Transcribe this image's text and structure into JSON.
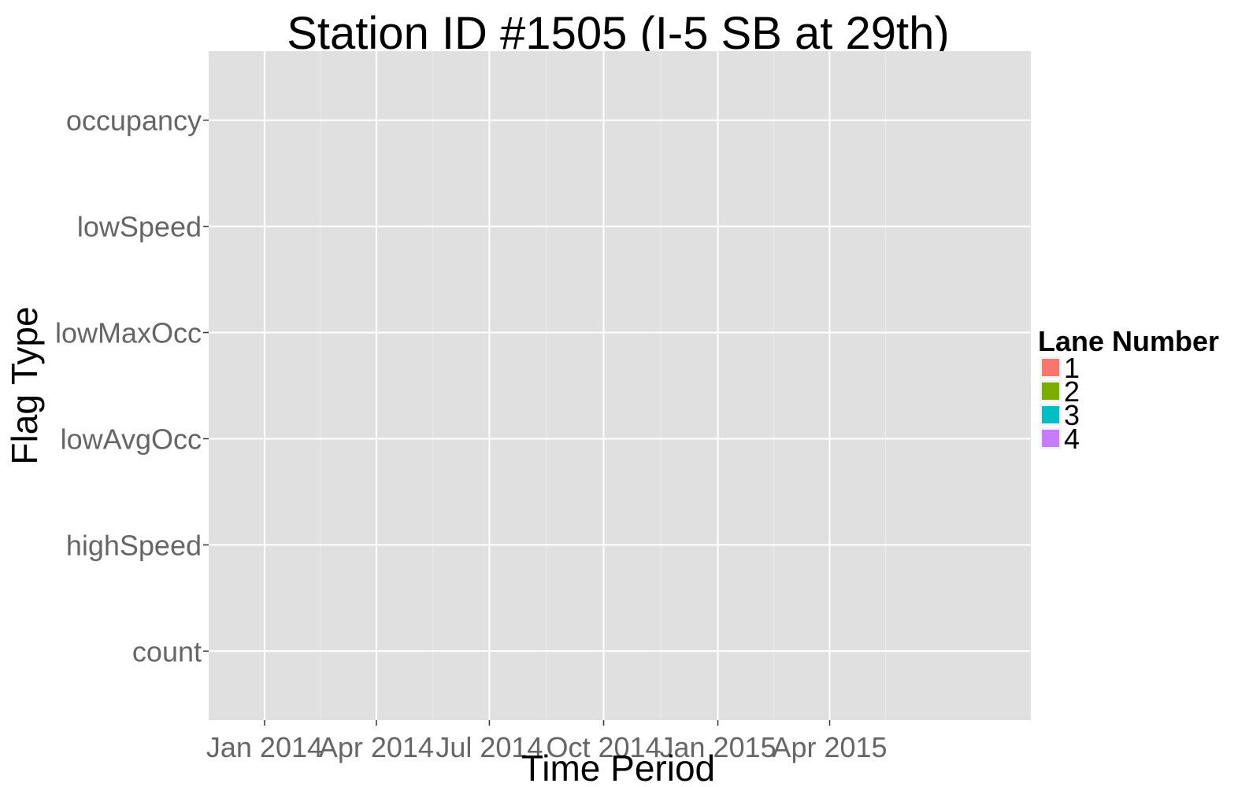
{
  "chart_data": {
    "type": "scatter",
    "title": "Station ID #1505 (I-5 SB at 29th)",
    "xlabel": "Time Period",
    "ylabel": "Flag Type",
    "x_axis": {
      "type": "date",
      "range": [
        "2013-11-17",
        "2015-09-10"
      ],
      "ticks": [
        {
          "date": "2014-01-01",
          "label": "Jan 2014"
        },
        {
          "date": "2014-04-01",
          "label": "Apr 2014"
        },
        {
          "date": "2014-07-01",
          "label": "Jul 2014"
        },
        {
          "date": "2014-10-01",
          "label": "Oct 2014"
        },
        {
          "date": "2015-01-01",
          "label": "Jan 2015"
        },
        {
          "date": "2015-04-01",
          "label": "Apr 2015"
        }
      ]
    },
    "categories": [
      "count",
      "highSpeed",
      "lowAvgOcc",
      "lowMaxOcc",
      "lowSpeed",
      "occupancy"
    ],
    "grid": true,
    "legend": {
      "title": "Lane Number",
      "position": "right",
      "entries": [
        {
          "label": "1",
          "color": "#F8766D"
        },
        {
          "label": "2",
          "color": "#7CAE00"
        },
        {
          "label": "3",
          "color": "#00BFC4"
        },
        {
          "label": "4",
          "color": "#C77CFF"
        }
      ]
    },
    "series": [],
    "colors": {
      "panel": "#E0E0E0",
      "grid": "#FFFFFF",
      "tick_text": "#666666"
    }
  }
}
